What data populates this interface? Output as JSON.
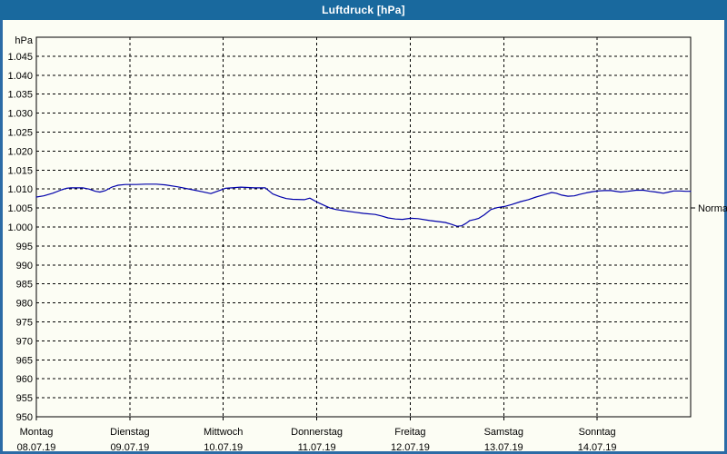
{
  "window": {
    "title": "Luftdruck [hPa]"
  },
  "colors": {
    "titlebar": "#19699e",
    "window_border": "#2b6ba6",
    "chart_bg": "#fcfdf4",
    "grid": "#000000",
    "curve": "#0000aa"
  },
  "chart_data": {
    "type": "line",
    "title": "Luftdruck [hPa]",
    "y_unit_label": "hPa",
    "ylim": [
      950,
      1050
    ],
    "x_hours_total": 168,
    "grid": "dashed",
    "legend_position": "none",
    "y_ticks": [
      {
        "value": 1045,
        "label": "1.045"
      },
      {
        "value": 1040,
        "label": "1.040"
      },
      {
        "value": 1035,
        "label": "1.035"
      },
      {
        "value": 1030,
        "label": "1.030"
      },
      {
        "value": 1025,
        "label": "1.025"
      },
      {
        "value": 1020,
        "label": "1.020"
      },
      {
        "value": 1015,
        "label": "1.015"
      },
      {
        "value": 1010,
        "label": "1.010"
      },
      {
        "value": 1005,
        "label": "1.005"
      },
      {
        "value": 1000,
        "label": "1.000"
      },
      {
        "value": 995,
        "label": "995"
      },
      {
        "value": 990,
        "label": "990"
      },
      {
        "value": 985,
        "label": "985"
      },
      {
        "value": 980,
        "label": "980"
      },
      {
        "value": 975,
        "label": "975"
      },
      {
        "value": 970,
        "label": "970"
      },
      {
        "value": 965,
        "label": "965"
      },
      {
        "value": 960,
        "label": "960"
      },
      {
        "value": 955,
        "label": "955"
      },
      {
        "value": 950,
        "label": "950"
      }
    ],
    "x_ticks": [
      {
        "hour": 0,
        "day": "Montag",
        "date": "08.07.19"
      },
      {
        "hour": 24,
        "day": "Dienstag",
        "date": "09.07.19"
      },
      {
        "hour": 48,
        "day": "Mittwoch",
        "date": "10.07.19"
      },
      {
        "hour": 72,
        "day": "Donnerstag",
        "date": "11.07.19"
      },
      {
        "hour": 96,
        "day": "Freitag",
        "date": "12.07.19"
      },
      {
        "hour": 120,
        "day": "Samstag",
        "date": "13.07.19"
      },
      {
        "hour": 144,
        "day": "Sonntag",
        "date": "14.07.19"
      }
    ],
    "normal_marker": {
      "label": "Normal",
      "value": 1005
    },
    "series": [
      {
        "name": "Luftdruck",
        "color": "#0000aa",
        "points": [
          [
            0,
            1007.9
          ],
          [
            1.9,
            1008.2
          ],
          [
            4.2,
            1008.9
          ],
          [
            6.5,
            1009.8
          ],
          [
            7.7,
            1010.2
          ],
          [
            8.9,
            1010.3
          ],
          [
            11.9,
            1010.3
          ],
          [
            13.5,
            1010.0
          ],
          [
            15.2,
            1009.4
          ],
          [
            16.3,
            1009.2
          ],
          [
            17.7,
            1009.6
          ],
          [
            19.4,
            1010.5
          ],
          [
            21.0,
            1011.0
          ],
          [
            22.9,
            1011.2
          ],
          [
            24.0,
            1011.2
          ],
          [
            25.7,
            1011.2
          ],
          [
            28.0,
            1011.3
          ],
          [
            30.8,
            1011.3
          ],
          [
            33.1,
            1011.1
          ],
          [
            36.2,
            1010.6
          ],
          [
            39.7,
            1009.9
          ],
          [
            42.5,
            1009.3
          ],
          [
            44.8,
            1008.8
          ],
          [
            46.7,
            1009.5
          ],
          [
            48.5,
            1010.2
          ],
          [
            50.2,
            1010.3
          ],
          [
            52.5,
            1010.5
          ],
          [
            56.0,
            1010.3
          ],
          [
            58.8,
            1010.3
          ],
          [
            60.7,
            1008.7
          ],
          [
            62.5,
            1008.0
          ],
          [
            64.2,
            1007.5
          ],
          [
            65.8,
            1007.3
          ],
          [
            68.8,
            1007.2
          ],
          [
            70.2,
            1007.6
          ],
          [
            72.0,
            1006.6
          ],
          [
            73.7,
            1005.8
          ],
          [
            75.4,
            1005.0
          ],
          [
            77.0,
            1004.6
          ],
          [
            78.9,
            1004.3
          ],
          [
            81.7,
            1003.9
          ],
          [
            84.0,
            1003.6
          ],
          [
            87.0,
            1003.3
          ],
          [
            88.7,
            1002.9
          ],
          [
            90.3,
            1002.4
          ],
          [
            92.2,
            1002.1
          ],
          [
            94.0,
            1002.0
          ],
          [
            96.1,
            1002.3
          ],
          [
            98.0,
            1002.2
          ],
          [
            101.0,
            1001.7
          ],
          [
            103.4,
            1001.4
          ],
          [
            105.0,
            1001.2
          ],
          [
            106.6,
            1000.7
          ],
          [
            108.0,
            1000.2
          ],
          [
            109.2,
            1000.3
          ],
          [
            110.4,
            1001.0
          ],
          [
            111.3,
            1001.7
          ],
          [
            112.7,
            1002.0
          ],
          [
            113.6,
            1002.3
          ],
          [
            115.0,
            1003.2
          ],
          [
            116.7,
            1004.6
          ],
          [
            118.3,
            1005.1
          ],
          [
            120.2,
            1005.4
          ],
          [
            122.0,
            1005.9
          ],
          [
            124.4,
            1006.7
          ],
          [
            126.3,
            1007.2
          ],
          [
            128.3,
            1007.9
          ],
          [
            130.0,
            1008.4
          ],
          [
            131.4,
            1008.8
          ],
          [
            132.3,
            1009.1
          ],
          [
            133.5,
            1008.9
          ],
          [
            134.9,
            1008.4
          ],
          [
            136.5,
            1008.1
          ],
          [
            138.1,
            1008.2
          ],
          [
            139.5,
            1008.6
          ],
          [
            141.2,
            1009.0
          ],
          [
            142.8,
            1009.3
          ],
          [
            144.2,
            1009.5
          ],
          [
            145.8,
            1009.6
          ],
          [
            147.5,
            1009.6
          ],
          [
            150.0,
            1009.2
          ],
          [
            151.9,
            1009.4
          ],
          [
            154.0,
            1009.7
          ],
          [
            155.9,
            1009.7
          ],
          [
            157.5,
            1009.4
          ],
          [
            159.1,
            1009.2
          ],
          [
            161.0,
            1008.9
          ],
          [
            162.4,
            1009.2
          ],
          [
            163.6,
            1009.5
          ],
          [
            165.2,
            1009.5
          ],
          [
            166.8,
            1009.4
          ],
          [
            168.0,
            1009.4
          ]
        ]
      }
    ]
  }
}
